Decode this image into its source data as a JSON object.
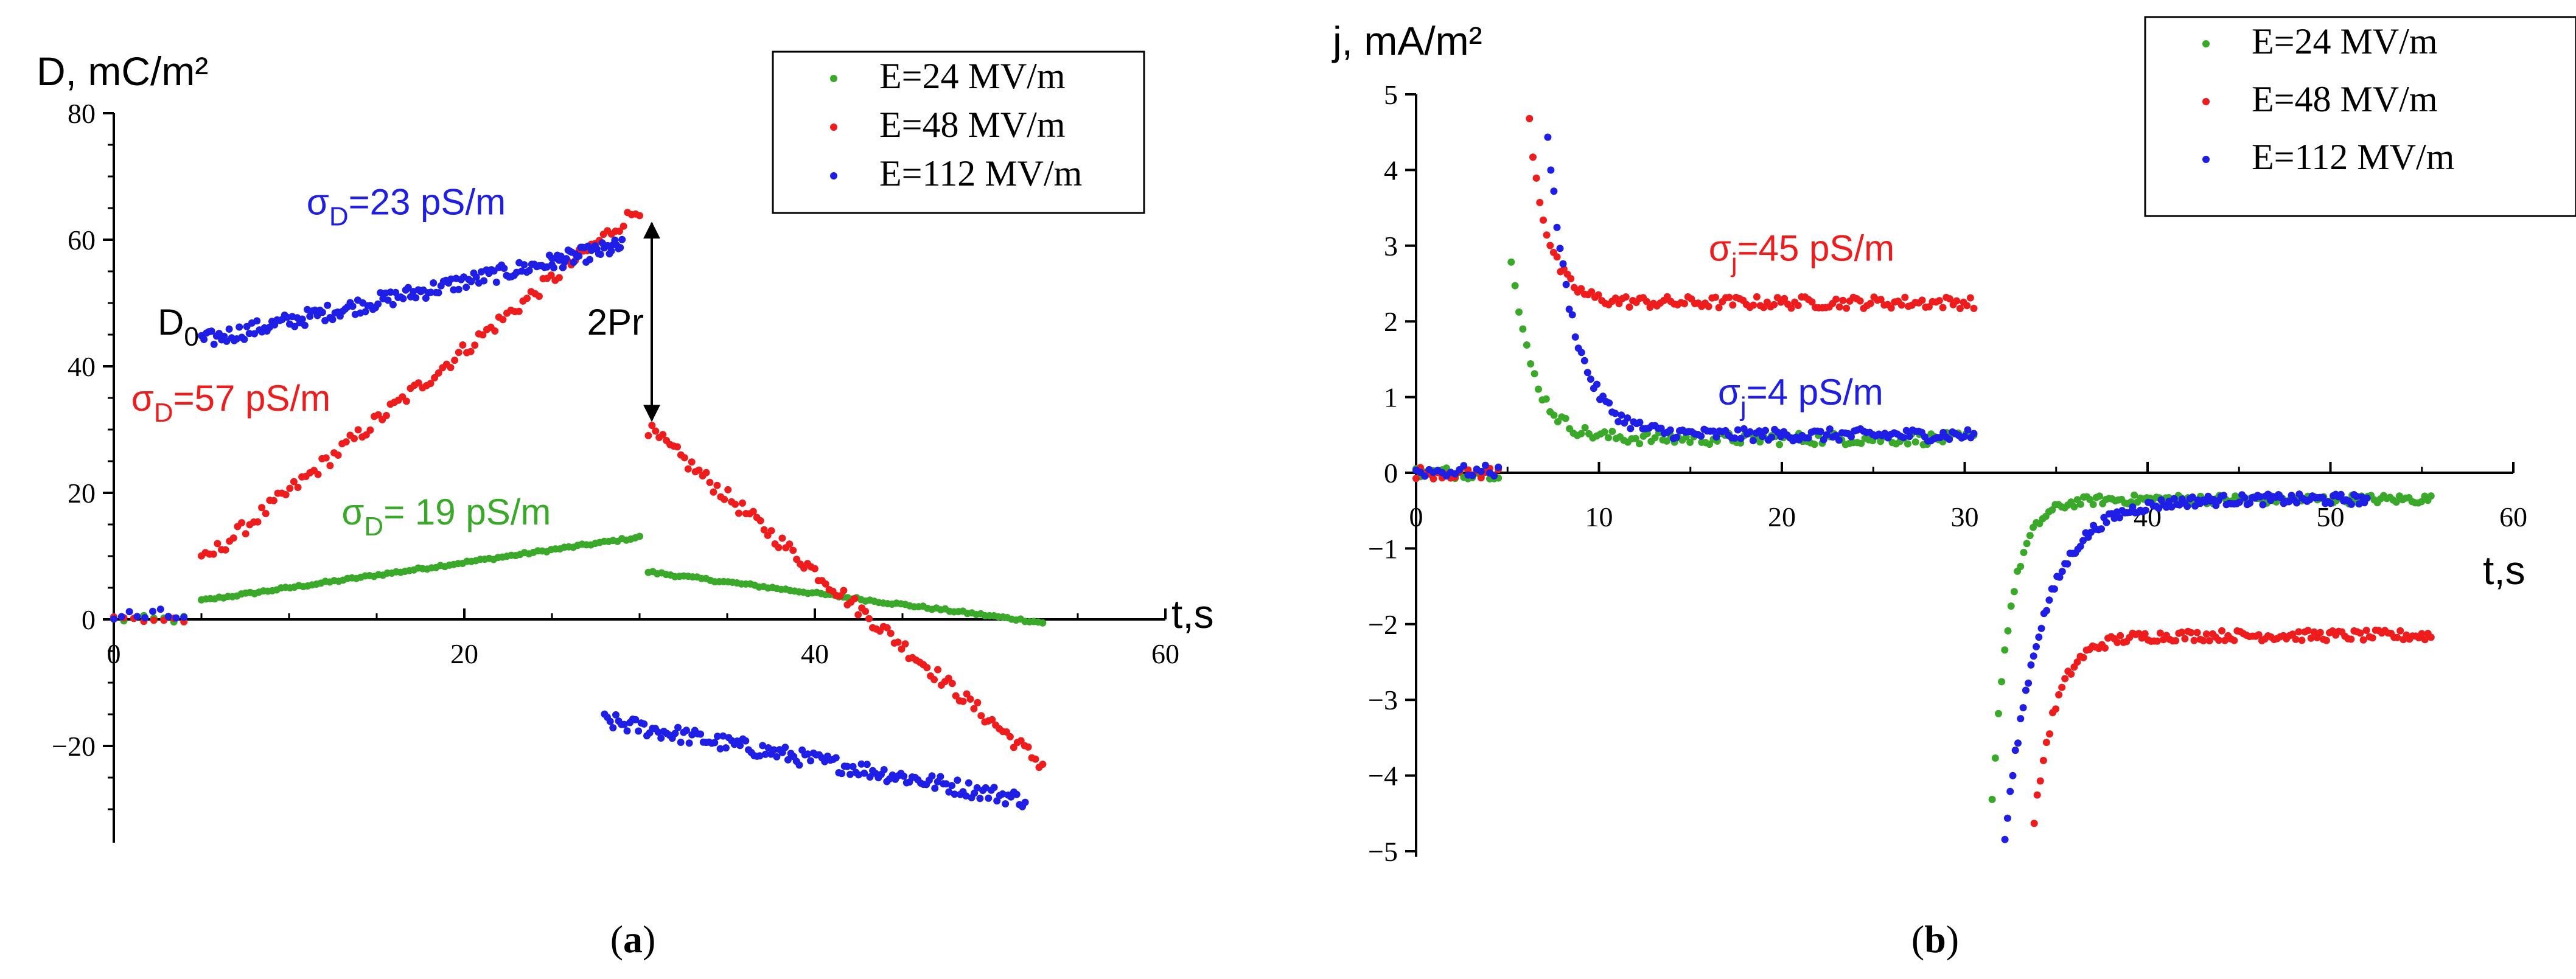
{
  "colors": {
    "green": "#3aa829",
    "red": "#ee1c1c",
    "blue": "#1e1ee6",
    "black": "#000000"
  },
  "chart_data": [
    {
      "id": "a",
      "type": "scatter",
      "panel_label": "(a)",
      "panel_label_letter": "a",
      "ylabel": "D, mC/m²",
      "xlabel": "t,s",
      "xlim": [
        0,
        60
      ],
      "ylim": [
        -35,
        80
      ],
      "xticks": [
        0,
        20,
        40,
        60
      ],
      "yticks": [
        -20,
        0,
        20,
        40,
        60,
        80
      ],
      "tick_labels_x": [
        "0",
        "20",
        "40",
        "60"
      ],
      "tick_labels_y": [
        "−20",
        "0",
        "20",
        "40",
        "60",
        "80"
      ],
      "legend": {
        "placement": "top-right",
        "entries": [
          {
            "label": "E=24  MV/m",
            "color": "#3aa829"
          },
          {
            "label": "E=48 MV/m",
            "color": "#ee1c1c"
          },
          {
            "label": "E=112  MV/m",
            "color": "#1e1ee6"
          }
        ]
      },
      "annotations": [
        {
          "prefix": "σ",
          "sub": "D",
          "rest": "=23 pS/m",
          "color": "#1e1ee6",
          "x": 11,
          "y": 64
        },
        {
          "prefix": "σ",
          "sub": "D",
          "rest": "=57 pS/m",
          "color": "#ee1c1c",
          "x": 1,
          "y": 33
        },
        {
          "prefix": "σ",
          "sub": "D",
          "rest": "= 19 pS/m",
          "color": "#3aa829",
          "x": 13,
          "y": 15
        },
        {
          "prefix": "D",
          "sub": "0",
          "rest": "",
          "color": "#000000",
          "x": 2.5,
          "y": 45
        },
        {
          "prefix": "2Pr",
          "sub": "",
          "rest": "",
          "color": "#000000",
          "x": 27,
          "y": 45
        }
      ],
      "arrow_2Pr": {
        "x": 30,
        "y_top": 65,
        "y_bottom": 31
      },
      "series": [
        {
          "name": "E=24 MV/m",
          "color": "#3aa829",
          "segments": [
            {
              "type": "flat",
              "x": [
                0,
                4
              ],
              "y": 0,
              "noise": 0.6,
              "n": 8
            },
            {
              "type": "line",
              "x": [
                5,
                30
              ],
              "y": [
                3,
                13
              ],
              "noise": 0.2,
              "n": 100
            },
            {
              "type": "line",
              "x": [
                30.5,
                53
              ],
              "y": [
                7.5,
                -0.5
              ],
              "noise": 0.2,
              "n": 90
            }
          ]
        },
        {
          "name": "E=48 MV/m",
          "color": "#ee1c1c",
          "segments": [
            {
              "type": "flat",
              "x": [
                0,
                4
              ],
              "y": 0,
              "noise": 1.0,
              "n": 8
            },
            {
              "type": "line",
              "x": [
                5,
                30
              ],
              "y": [
                9,
                65
              ],
              "noise": 1.2,
              "n": 110
            },
            {
              "type": "line",
              "x": [
                30.5,
                53
              ],
              "y": [
                30,
                -23
              ],
              "noise": 1.2,
              "n": 110
            }
          ]
        },
        {
          "name": "E=112 MV/m",
          "color": "#1e1ee6",
          "segments": [
            {
              "type": "flat",
              "x": [
                0,
                4
              ],
              "y": 0.5,
              "noise": 1.2,
              "n": 10
            },
            {
              "type": "line",
              "x": [
                5,
                25
              ],
              "y": [
                44,
                56.5
              ],
              "noise": 1.3,
              "n": 140
            },
            {
              "type": "line",
              "x": [
                25,
                29
              ],
              "y": [
                56.5,
                59
              ],
              "noise": 1.3,
              "n": 40
            },
            {
              "type": "line",
              "x": [
                28,
                52
              ],
              "y": [
                -16,
                -28.5
              ],
              "noise": 1.3,
              "n": 150
            }
          ]
        }
      ]
    },
    {
      "id": "b",
      "type": "scatter",
      "panel_label": "(b)",
      "panel_label_letter": "b",
      "ylabel": "j, mA/m²",
      "xlabel": "t,s",
      "xlim": [
        0,
        60
      ],
      "ylim": [
        -5,
        5
      ],
      "xticks": [
        0,
        10,
        20,
        30,
        40,
        50,
        60
      ],
      "yticks": [
        -5,
        -4,
        -3,
        -2,
        -1,
        0,
        1,
        2,
        3,
        4,
        5
      ],
      "tick_labels_x": [
        "0",
        "10",
        "20",
        "30",
        "40",
        "50",
        "60"
      ],
      "tick_labels_y": [
        "−5",
        "−4",
        "−3",
        "−2",
        "−1",
        "0",
        "1",
        "2",
        "3",
        "4",
        "5"
      ],
      "legend": {
        "placement": "top-right",
        "entries": [
          {
            "label": "E=24 MV/m",
            "color": "#3aa829"
          },
          {
            "label": "E=48 MV/m",
            "color": "#ee1c1c"
          },
          {
            "label": "E=112 MV/m",
            "color": "#1e1ee6"
          }
        ]
      },
      "annotations": [
        {
          "prefix": "σ",
          "sub": "j",
          "rest": "=45 pS/m",
          "color": "#ee1c1c",
          "x": 16,
          "y": 2.8
        },
        {
          "prefix": "σ",
          "sub": "j",
          "rest": "=4 pS/m",
          "color": "#1e1ee6",
          "x": 16.5,
          "y": 0.9
        }
      ],
      "series": [
        {
          "name": "E=24 MV/m",
          "color": "#3aa829",
          "segments": [
            {
              "type": "flat",
              "x": [
                0,
                4.5
              ],
              "y": 0,
              "noise": 0.08,
              "n": 20
            },
            {
              "type": "decay",
              "x": [
                5.2,
                30.5
              ],
              "amp": 2.4,
              "tau": 1.2,
              "offset": 0.45,
              "noise": 0.08,
              "n": 120
            },
            {
              "type": "decay",
              "x": [
                31.5,
                55.5
              ],
              "amp": -4.0,
              "tau": 1.0,
              "offset": -0.35,
              "noise": 0.06,
              "n": 140
            }
          ]
        },
        {
          "name": "E=48 MV/m",
          "color": "#ee1c1c",
          "segments": [
            {
              "type": "flat",
              "x": [
                0,
                4.5
              ],
              "y": 0,
              "noise": 0.08,
              "n": 20
            },
            {
              "type": "decay",
              "x": [
                6.2,
                30.5
              ],
              "amp": 2.4,
              "tau": 1.0,
              "offset": 2.25,
              "noise": 0.08,
              "n": 130
            },
            {
              "type": "decay",
              "x": [
                33.8,
                55.5
              ],
              "amp": -2.5,
              "tau": 1.2,
              "offset": -2.15,
              "noise": 0.07,
              "n": 130
            }
          ]
        },
        {
          "name": "E=112 MV/m",
          "color": "#1e1ee6",
          "segments": [
            {
              "type": "flat",
              "x": [
                0,
                4.5
              ],
              "y": 0.02,
              "noise": 0.08,
              "n": 20
            },
            {
              "type": "decay",
              "x": [
                7.2,
                30.5
              ],
              "amp": 4.0,
              "tau": 1.4,
              "offset": 0.5,
              "noise": 0.08,
              "n": 140
            },
            {
              "type": "decay",
              "x": [
                32.2,
                52
              ],
              "amp": -4.5,
              "tau": 2.0,
              "offset": -0.35,
              "noise": 0.07,
              "n": 140
            }
          ]
        }
      ]
    }
  ]
}
